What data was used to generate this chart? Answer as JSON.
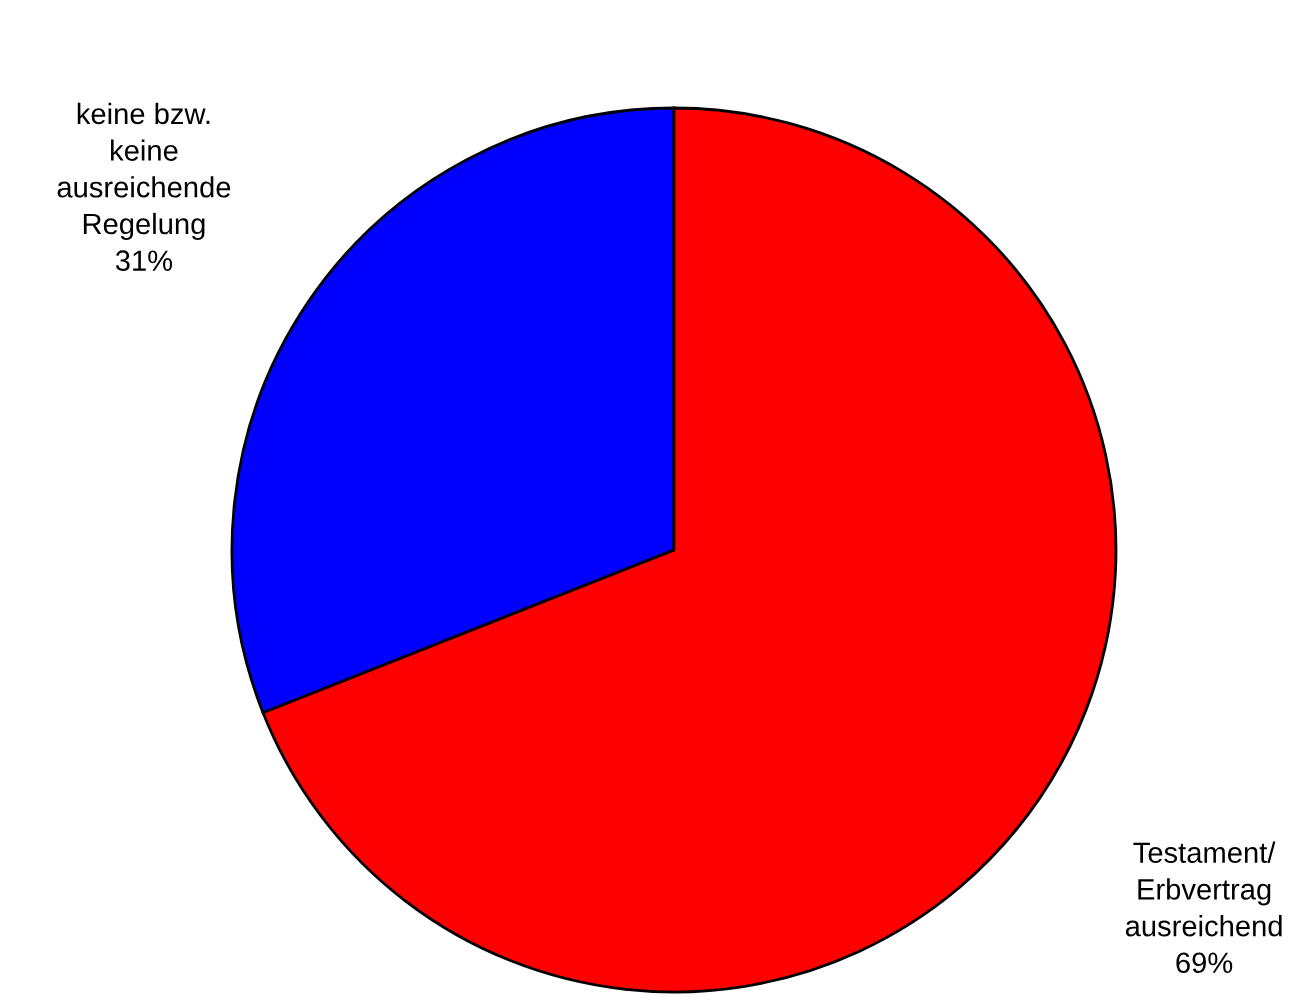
{
  "chart_data": {
    "type": "pie",
    "categories": [
      "keine bzw.\nkeine\nausreichende\nRegelung",
      "Testament/\nErbvertrag\nausreichend"
    ],
    "values": [
      31,
      69
    ],
    "colors": [
      "#0000ff",
      "#ff0000"
    ],
    "value_labels": [
      "31%",
      "69%"
    ]
  }
}
